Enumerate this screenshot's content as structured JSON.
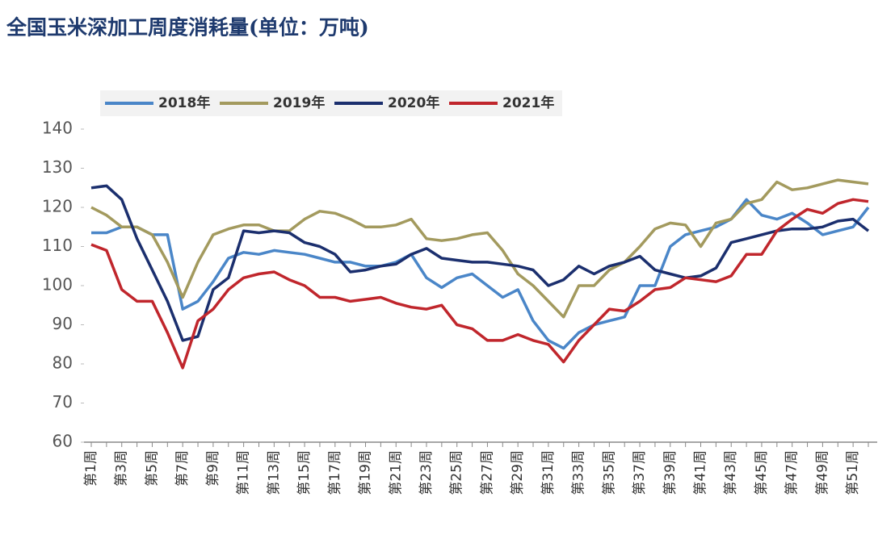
{
  "chart_data": {
    "type": "line",
    "title": "全国玉米深加工周度消耗量(单位：万吨)",
    "categories": [
      "第1周",
      null,
      "第3周",
      null,
      "第5周",
      null,
      "第7周",
      null,
      "第9周",
      null,
      "第11周",
      null,
      "第13周",
      null,
      "第15周",
      null,
      "第17周",
      null,
      "第19周",
      null,
      "第21周",
      null,
      "第23周",
      null,
      "第25周",
      null,
      "第27周",
      null,
      "第29周",
      null,
      "第31周",
      null,
      "第33周",
      null,
      "第35周",
      null,
      "第37周",
      null,
      "第39周",
      null,
      "第41周",
      null,
      "第43周",
      null,
      "第45周",
      null,
      "第47周",
      null,
      "第49周",
      null,
      "第51周",
      null
    ],
    "series": [
      {
        "name": "2018年",
        "color": "#4a86c8",
        "values": [
          113.5,
          113.5,
          115,
          115,
          113,
          113,
          94,
          96,
          101,
          107,
          108.5,
          108,
          109,
          108.5,
          108,
          107,
          106,
          106,
          105,
          105,
          106,
          108,
          102,
          99.5,
          102,
          103,
          100,
          97,
          99,
          91,
          86,
          84,
          88,
          90,
          91,
          92,
          100,
          100,
          110,
          113,
          114,
          115,
          117,
          122,
          118,
          117,
          118.5,
          116,
          113,
          114,
          115,
          120
        ]
      },
      {
        "name": "2019年",
        "color": "#a39a5e",
        "values": [
          120,
          118,
          115,
          115,
          113,
          106,
          97,
          106,
          113,
          114.5,
          115.5,
          115.5,
          114,
          114,
          117,
          119,
          118.5,
          117,
          115,
          115,
          115.5,
          117,
          112,
          111.5,
          112,
          113,
          113.5,
          109,
          103,
          100,
          96,
          92,
          100,
          100,
          104,
          106,
          110,
          114.5,
          116,
          115.5,
          110,
          116,
          117,
          121,
          122,
          126.5,
          124.5,
          125,
          126,
          127,
          126.5,
          126
        ]
      },
      {
        "name": "2020年",
        "color": "#1b2f6e",
        "values": [
          125,
          125.5,
          122,
          112,
          104,
          96,
          86,
          87,
          99,
          102,
          114,
          113.5,
          114,
          113.5,
          111,
          110,
          108,
          103.5,
          104,
          105,
          105.5,
          108,
          109.5,
          107,
          106.5,
          106,
          106,
          105.5,
          105,
          104,
          100,
          101.5,
          105,
          103,
          105,
          106,
          107.5,
          104,
          103,
          102,
          102.5,
          104.5,
          111,
          112,
          113,
          114,
          114.5,
          114.5,
          115,
          116.5,
          117,
          114
        ]
      },
      {
        "name": "2021年",
        "color": "#c0262c",
        "values": [
          110.5,
          109,
          99,
          96,
          96,
          88,
          79,
          91,
          94,
          99,
          102,
          103,
          103.5,
          101.5,
          100,
          97,
          97,
          96,
          96.5,
          97,
          95.5,
          94.5,
          94,
          95,
          90,
          89,
          86,
          86,
          87.5,
          86,
          85,
          80.5,
          86,
          90,
          94,
          93.5,
          96,
          99,
          99.5,
          102,
          101.5,
          101,
          102.5,
          108,
          108,
          114,
          117,
          119.5,
          118.5,
          121,
          122,
          121.5
        ]
      }
    ],
    "ylim": [
      60,
      140
    ],
    "yticks": [
      60,
      70,
      80,
      90,
      100,
      110,
      120,
      130,
      140
    ],
    "grid": false,
    "legend": "top-left"
  }
}
